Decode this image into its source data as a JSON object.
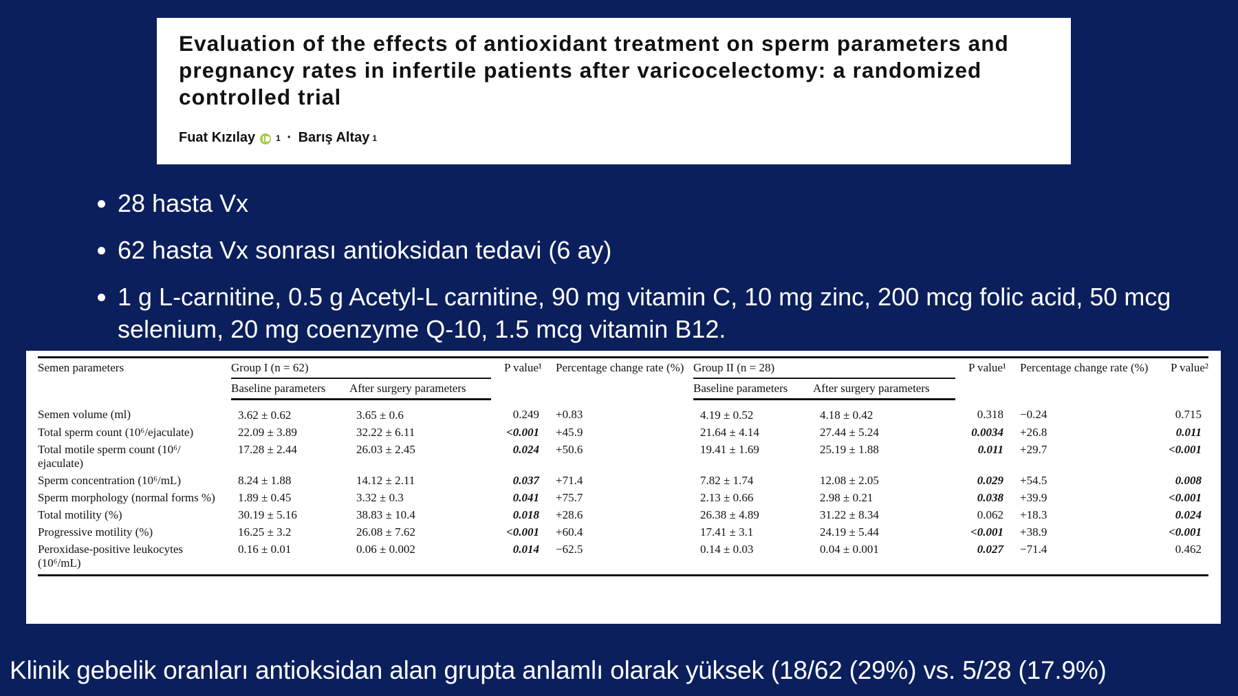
{
  "header": {
    "title": "Evaluation of the effects of antioxidant treatment on sperm parameters and pregnancy rates in infertile patients after varicocelectomy: a randomized controlled trial",
    "authors": [
      {
        "name": "Fuat Kızılay",
        "affiliation": "1"
      },
      {
        "name": "Barış Altay",
        "affiliation": "1"
      }
    ]
  },
  "bullets": [
    "28 hasta Vx",
    "62 hasta Vx sonrası antioksidan tedavi (6 ay)",
    "1 g L-carnitine, 0.5 g Acetyl-L carnitine, 90 mg vitamin C, 10 mg zinc, 200 mcg folic acid, 50 mcg selenium, 20 mg coenzyme Q-10, 1.5 mcg vitamin B12."
  ],
  "table": {
    "header": {
      "top": [
        "Semen parameters",
        "Group I (n = 62)",
        "P value¹",
        "Percentage change rate (%)",
        "Group II (n = 28)",
        "P value¹",
        "Percentage change rate (%)",
        "P value²"
      ],
      "sub": [
        "Baseline parameters",
        "After surgery parameters",
        "Baseline parameters",
        "After surgery parameters"
      ]
    },
    "rows": [
      [
        "Semen volume (ml)",
        "3.62 ± 0.62",
        "3.65 ± 0.6",
        {
          "text": "0.249",
          "bold": false
        },
        "+0.83",
        "4.19 ± 0.52",
        "4.18 ± 0.42",
        {
          "text": "0.318",
          "bold": false
        },
        "−0.24",
        {
          "text": "0.715",
          "bold": false
        }
      ],
      [
        "Total sperm count (10⁶/ejaculate)",
        "22.09 ± 3.89",
        "32.22 ± 6.11",
        {
          "text": "<0.001",
          "bold": true
        },
        "+45.9",
        "21.64 ± 4.14",
        "27.44 ± 5.24",
        {
          "text": "0.0034",
          "bold": true
        },
        "+26.8",
        {
          "text": "0.011",
          "bold": true
        }
      ],
      [
        "Total motile sperm count (10⁶/ ejaculate)",
        "17.28 ± 2.44",
        "26.03 ± 2.45",
        {
          "text": "0.024",
          "bold": true
        },
        "+50.6",
        "19.41 ± 1.69",
        "25.19 ± 1.88",
        {
          "text": "0.011",
          "bold": true
        },
        "+29.7",
        {
          "text": "<0.001",
          "bold": true
        }
      ],
      [
        "Sperm concentration (10⁶/mL)",
        "8.24 ± 1.88",
        "14.12 ± 2.11",
        {
          "text": "0.037",
          "bold": true
        },
        "+71.4",
        "7.82 ± 1.74",
        "12.08 ± 2.05",
        {
          "text": "0.029",
          "bold": true
        },
        "+54.5",
        {
          "text": "0.008",
          "bold": true
        }
      ],
      [
        "Sperm morphology (normal forms %)",
        "1.89 ± 0.45",
        "3.32 ± 0.3",
        {
          "text": "0.041",
          "bold": true
        },
        "+75.7",
        "2.13 ± 0.66",
        "2.98 ± 0.21",
        {
          "text": "0.038",
          "bold": true
        },
        "+39.9",
        {
          "text": "<0.001",
          "bold": true
        }
      ],
      [
        "Total motility (%)",
        "30.19 ± 5.16",
        "38.83 ± 10.4",
        {
          "text": "0.018",
          "bold": true
        },
        "+28.6",
        "26.38 ± 4.89",
        "31.22 ± 8.34",
        {
          "text": "0.062",
          "bold": false
        },
        "+18.3",
        {
          "text": "0.024",
          "bold": true
        }
      ],
      [
        "Progressive motility (%)",
        "16.25 ± 3.2",
        "26.08 ± 7.62",
        {
          "text": "<0.001",
          "bold": true
        },
        "+60.4",
        "17.41 ± 3.1",
        "24.19 ± 5.44",
        {
          "text": "<0.001",
          "bold": true
        },
        "+38.9",
        {
          "text": "<0.001",
          "bold": true
        }
      ],
      [
        "Peroxidase-positive leukocytes (10⁶/mL)",
        "0.16 ± 0.01",
        "0.06 ± 0.002",
        {
          "text": "0.014",
          "bold": true
        },
        "−62.5",
        "0.14 ± 0.03",
        "0.04 ± 0.001",
        {
          "text": "0.027",
          "bold": true
        },
        "−71.4",
        {
          "text": "0.462",
          "bold": false
        }
      ]
    ]
  },
  "footer": "Klinik gebelik oranları antioksidan alan grupta anlamlı olarak yüksek (18/62 (29%) vs. 5/28 (17.9%)"
}
